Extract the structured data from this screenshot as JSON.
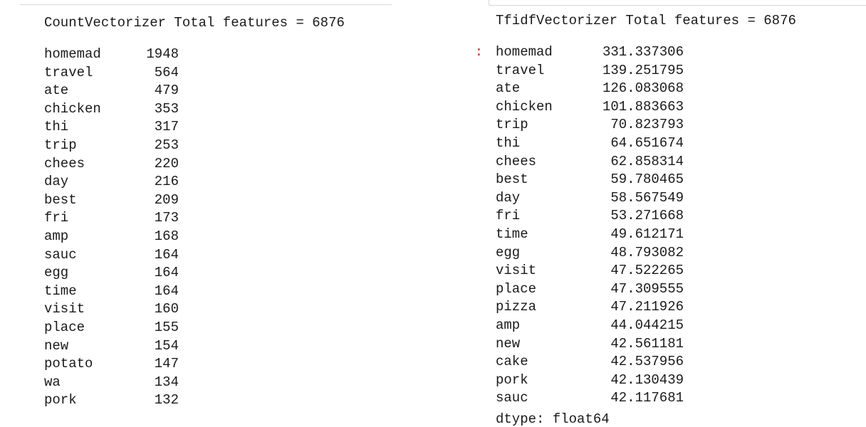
{
  "left_output": {
    "title": "CountVectorizer Total features = 6876",
    "rows": [
      {
        "term": "homemad",
        "value": "1948"
      },
      {
        "term": "travel",
        "value": "564"
      },
      {
        "term": "ate",
        "value": "479"
      },
      {
        "term": "chicken",
        "value": "353"
      },
      {
        "term": "thi",
        "value": "317"
      },
      {
        "term": "trip",
        "value": "253"
      },
      {
        "term": "chees",
        "value": "220"
      },
      {
        "term": "day",
        "value": "216"
      },
      {
        "term": "best",
        "value": "209"
      },
      {
        "term": "fri",
        "value": "173"
      },
      {
        "term": "amp",
        "value": "168"
      },
      {
        "term": "sauc",
        "value": "164"
      },
      {
        "term": "egg",
        "value": "164"
      },
      {
        "term": "time",
        "value": "164"
      },
      {
        "term": "visit",
        "value": "160"
      },
      {
        "term": "place",
        "value": "155"
      },
      {
        "term": "new",
        "value": "154"
      },
      {
        "term": "potato",
        "value": "147"
      },
      {
        "term": "wa",
        "value": "134"
      },
      {
        "term": "pork",
        "value": "132"
      }
    ]
  },
  "right_output": {
    "title": "TfidfVectorizer Total features = 6876",
    "marker": ":",
    "rows": [
      {
        "term": "homemad",
        "value": "331.337306"
      },
      {
        "term": "travel",
        "value": "139.251795"
      },
      {
        "term": "ate",
        "value": "126.083068"
      },
      {
        "term": "chicken",
        "value": "101.883663"
      },
      {
        "term": "trip",
        "value": "70.823793"
      },
      {
        "term": "thi",
        "value": "64.651674"
      },
      {
        "term": "chees",
        "value": "62.858314"
      },
      {
        "term": "best",
        "value": "59.780465"
      },
      {
        "term": "day",
        "value": "58.567549"
      },
      {
        "term": "fri",
        "value": "53.271668"
      },
      {
        "term": "time",
        "value": "49.612171"
      },
      {
        "term": "egg",
        "value": "48.793082"
      },
      {
        "term": "visit",
        "value": "47.522265"
      },
      {
        "term": "place",
        "value": "47.309555"
      },
      {
        "term": "pizza",
        "value": "47.211926"
      },
      {
        "term": "amp",
        "value": "44.044215"
      },
      {
        "term": "new",
        "value": "42.561181"
      },
      {
        "term": "cake",
        "value": "42.537956"
      },
      {
        "term": "pork",
        "value": "42.130439"
      },
      {
        "term": "sauc",
        "value": "42.117681"
      }
    ],
    "cut_off_row": "dtype: float64"
  }
}
